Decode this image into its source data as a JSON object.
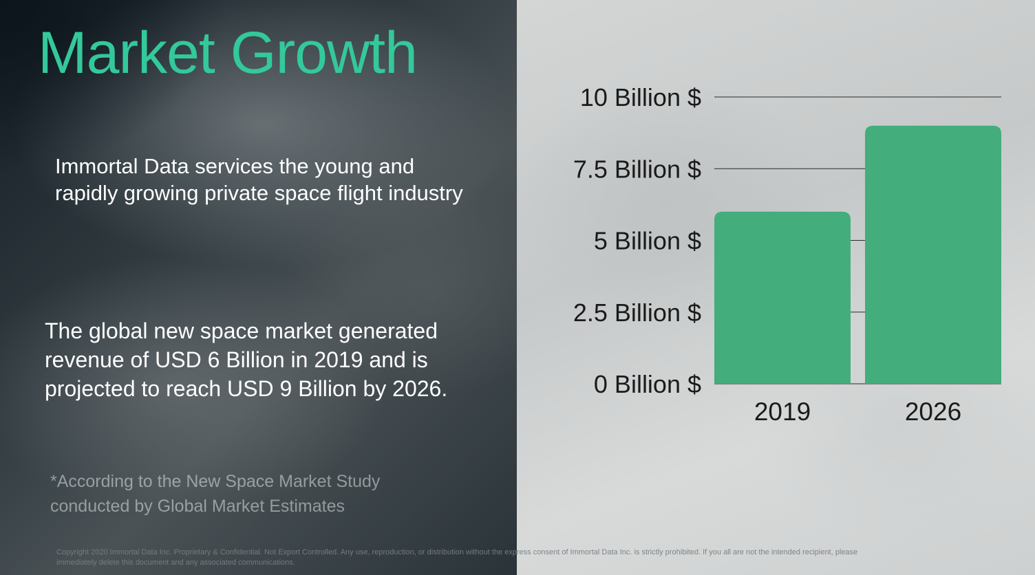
{
  "title": "Market Growth",
  "intro_text": "Immortal Data services the young and rapidly growing private space flight industry",
  "summary_text": "The global new space market generated revenue of USD 6 Billion in 2019 and is projected to reach USD 9 Billion by 2026.",
  "source_note": "*According to the New Space Market Study conducted by Global Market Estimates",
  "copyright": "Copyright 2020 Immortal Data Inc. Proprietary & Confidential. Not Export Controlled. Any use, reproduction, or distribution without the express consent of Immortal Data Inc. is strictly prohibited. If you all are not the intended recipient, please immediately delete this document and any associated communications.",
  "colors": {
    "title": "#33c99b",
    "bar": "#43ad7b",
    "gridline": "#2a2a2a",
    "left_panel": "#1a252c",
    "right_panel": "#cfd2d2"
  },
  "chart_data": {
    "type": "bar",
    "categories": [
      "2019",
      "2026"
    ],
    "values": [
      6,
      9
    ],
    "unit": "Billion $",
    "ylim": [
      0,
      10
    ],
    "yticks": [
      0,
      2.5,
      5,
      7.5,
      10
    ],
    "ytick_labels": [
      "0 Billion $",
      "2.5 Billion $",
      "5 Billion $",
      "7.5 Billion $",
      "10 Billion $"
    ],
    "grid": true
  }
}
